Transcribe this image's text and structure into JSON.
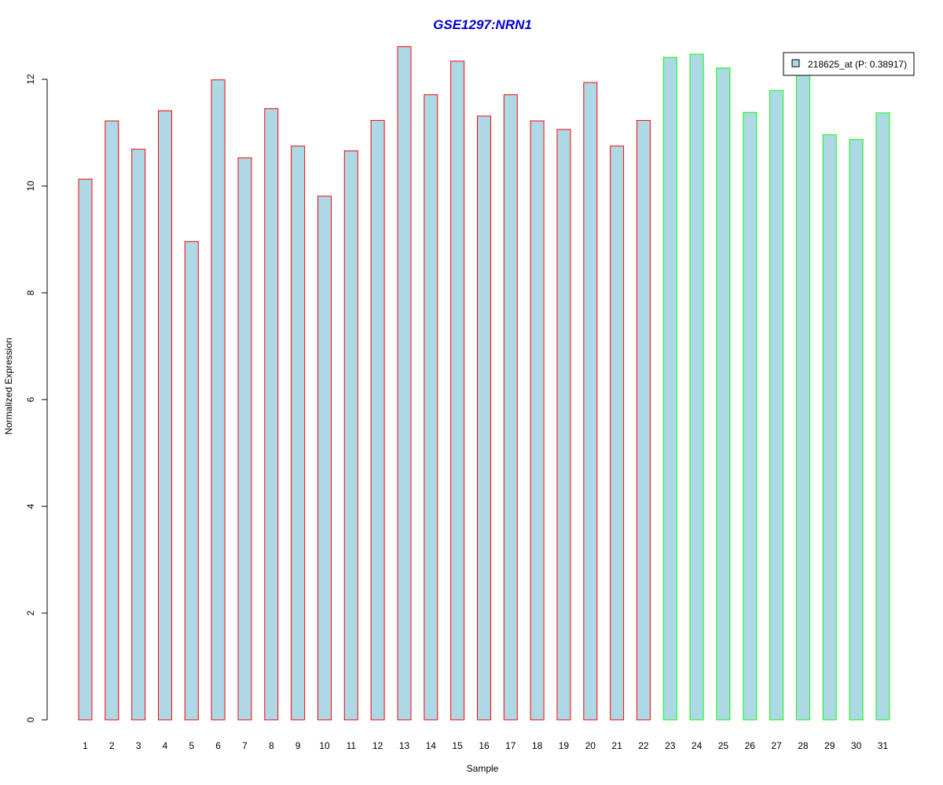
{
  "chart_data": {
    "type": "bar",
    "title": "GSE1297:NRN1",
    "xlabel": "Sample",
    "ylabel": "Normalized Expression",
    "categories": [
      "1",
      "2",
      "3",
      "4",
      "5",
      "6",
      "7",
      "8",
      "9",
      "10",
      "11",
      "12",
      "13",
      "14",
      "15",
      "16",
      "17",
      "18",
      "19",
      "20",
      "21",
      "22",
      "23",
      "24",
      "25",
      "26",
      "27",
      "28",
      "29",
      "30",
      "31"
    ],
    "series": [
      {
        "name": "218625_at (P: 0.38917)",
        "values": [
          10.13,
          11.22,
          10.69,
          11.41,
          8.96,
          11.99,
          10.53,
          11.45,
          10.75,
          9.81,
          10.66,
          11.23,
          12.61,
          11.71,
          12.34,
          11.31,
          11.71,
          11.22,
          11.06,
          11.94,
          10.75,
          11.23,
          12.41,
          12.47,
          12.21,
          11.38,
          11.79,
          12.1,
          10.96,
          10.87,
          11.37
        ]
      }
    ],
    "groups": [
      1,
      1,
      1,
      1,
      1,
      1,
      1,
      1,
      1,
      1,
      1,
      1,
      1,
      1,
      1,
      1,
      1,
      1,
      1,
      1,
      1,
      1,
      2,
      2,
      2,
      2,
      2,
      2,
      2,
      2,
      2
    ],
    "yticks": [
      0,
      2,
      4,
      6,
      8,
      10,
      12
    ],
    "ylim": [
      0,
      12.8
    ],
    "grid": false,
    "legend_position": "top-right",
    "colors": {
      "bar_fill": "#add8e6",
      "group1_border": "#ff0000",
      "group2_border": "#00ff00",
      "title": "#0000cc"
    }
  }
}
